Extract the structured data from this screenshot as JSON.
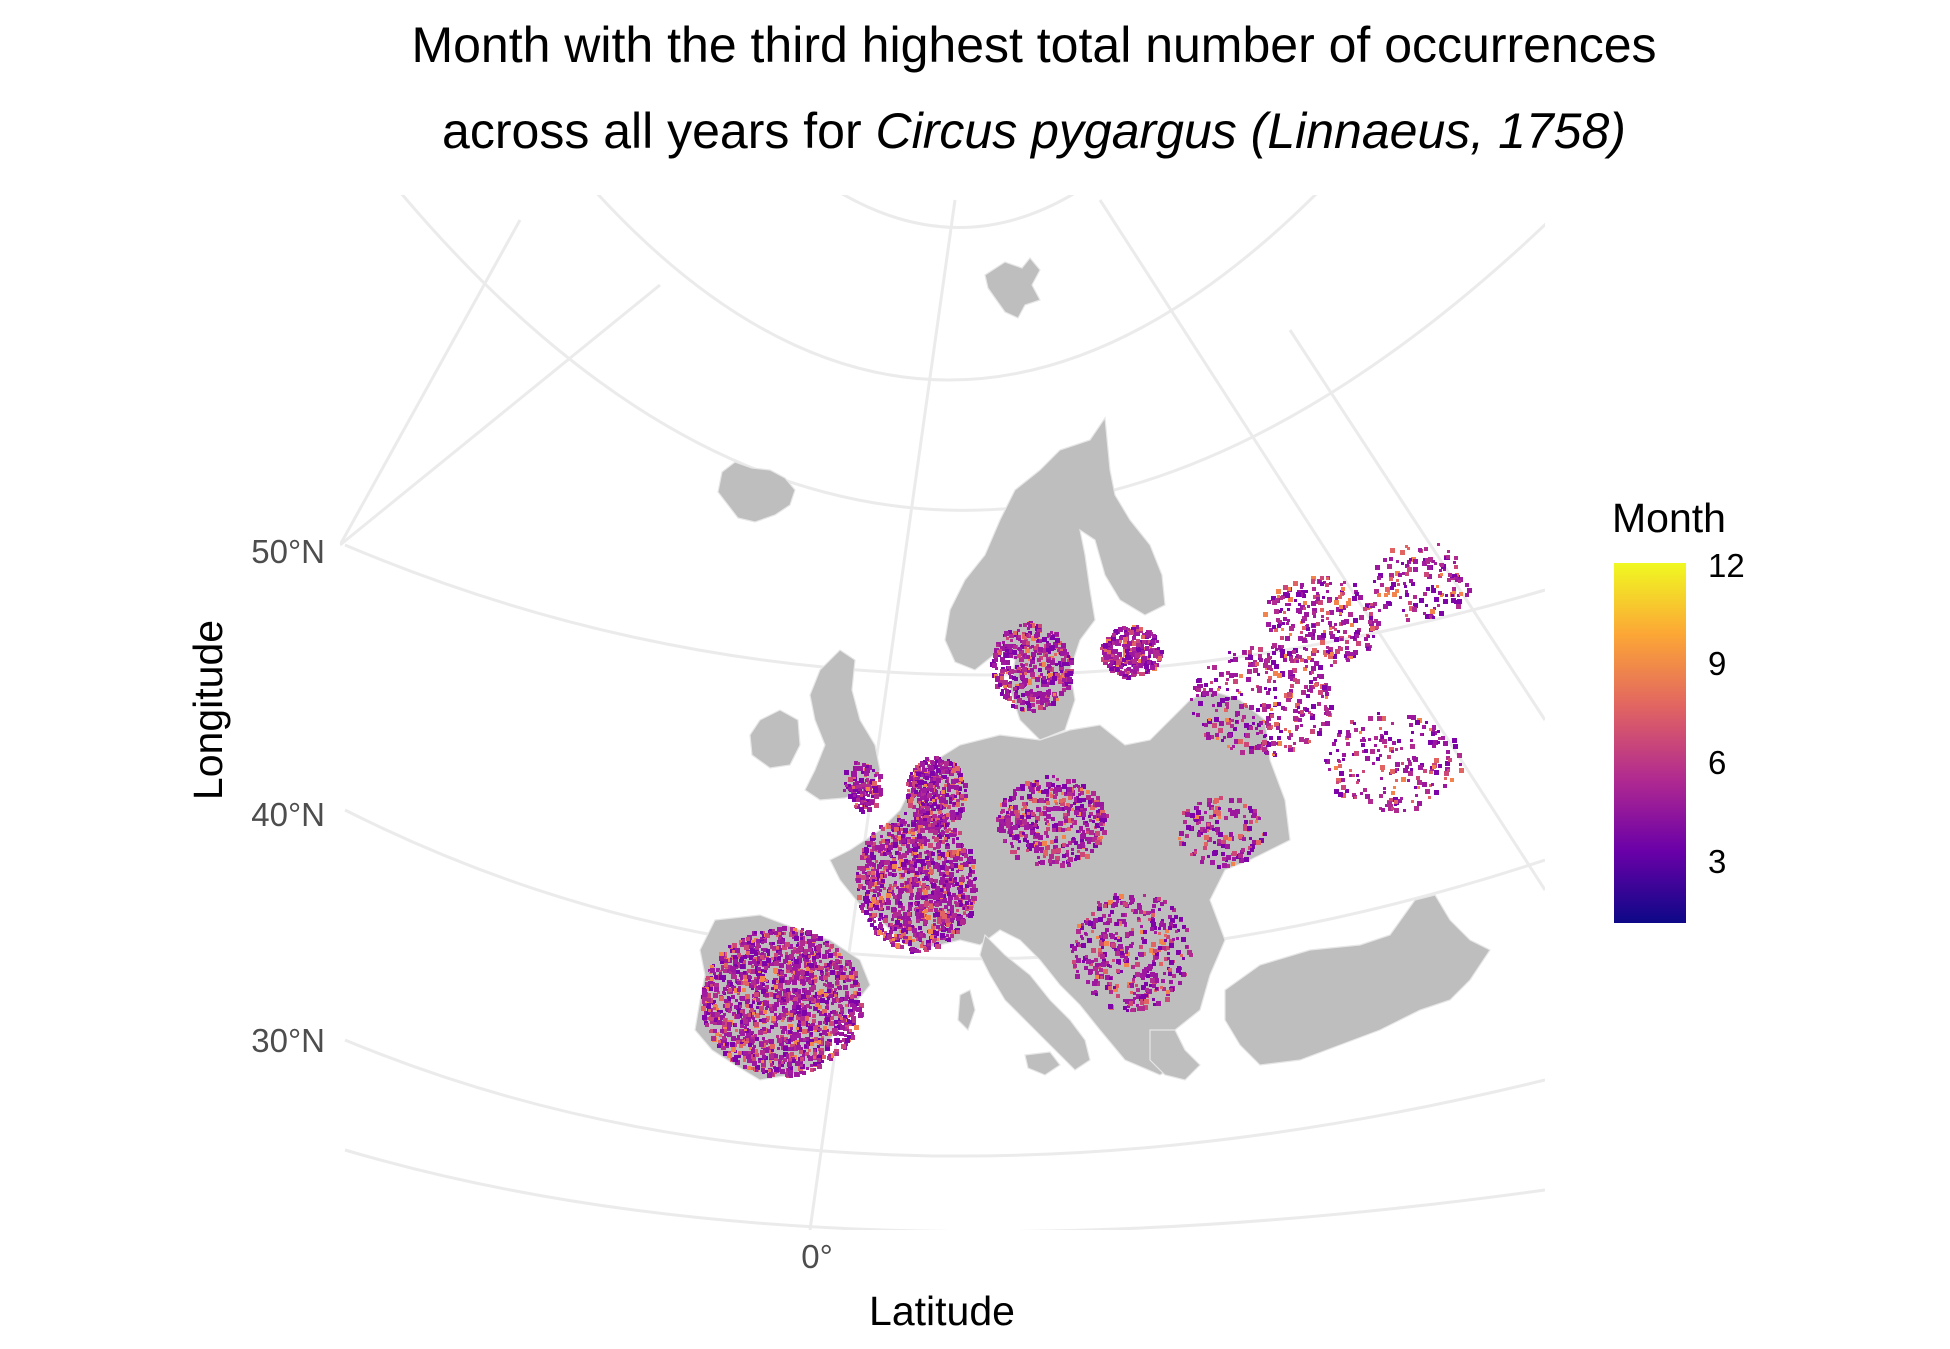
{
  "title": {
    "line1": "Month with the third highest total number of occurrences",
    "line2_prefix": "across all years for ",
    "line2_species": "Circus pygargus (Linnaeus, 1758)"
  },
  "axes": {
    "x_title": "Latitude",
    "y_title": "Longitude",
    "y_ticks": [
      "50°N",
      "40°N",
      "30°N"
    ],
    "x_ticks": [
      "0°"
    ]
  },
  "legend": {
    "title": "Month",
    "ticks": [
      "12",
      "9",
      "6",
      "3"
    ],
    "range": [
      1,
      12
    ],
    "palette": [
      "#0d0887",
      "#6a00a8",
      "#b12a90",
      "#e16462",
      "#fca636",
      "#f0f921"
    ]
  },
  "map": {
    "region": "Europe",
    "species": "Circus pygargus (Linnaeus, 1758)",
    "land_color": "#bebebe",
    "graticule_color": "#ebebeb",
    "dominant_month_range": [
      5,
      7
    ],
    "occurrence_density": "high in Iberia, France, Low Countries and Baltics; scattered in central and eastern Europe"
  }
}
